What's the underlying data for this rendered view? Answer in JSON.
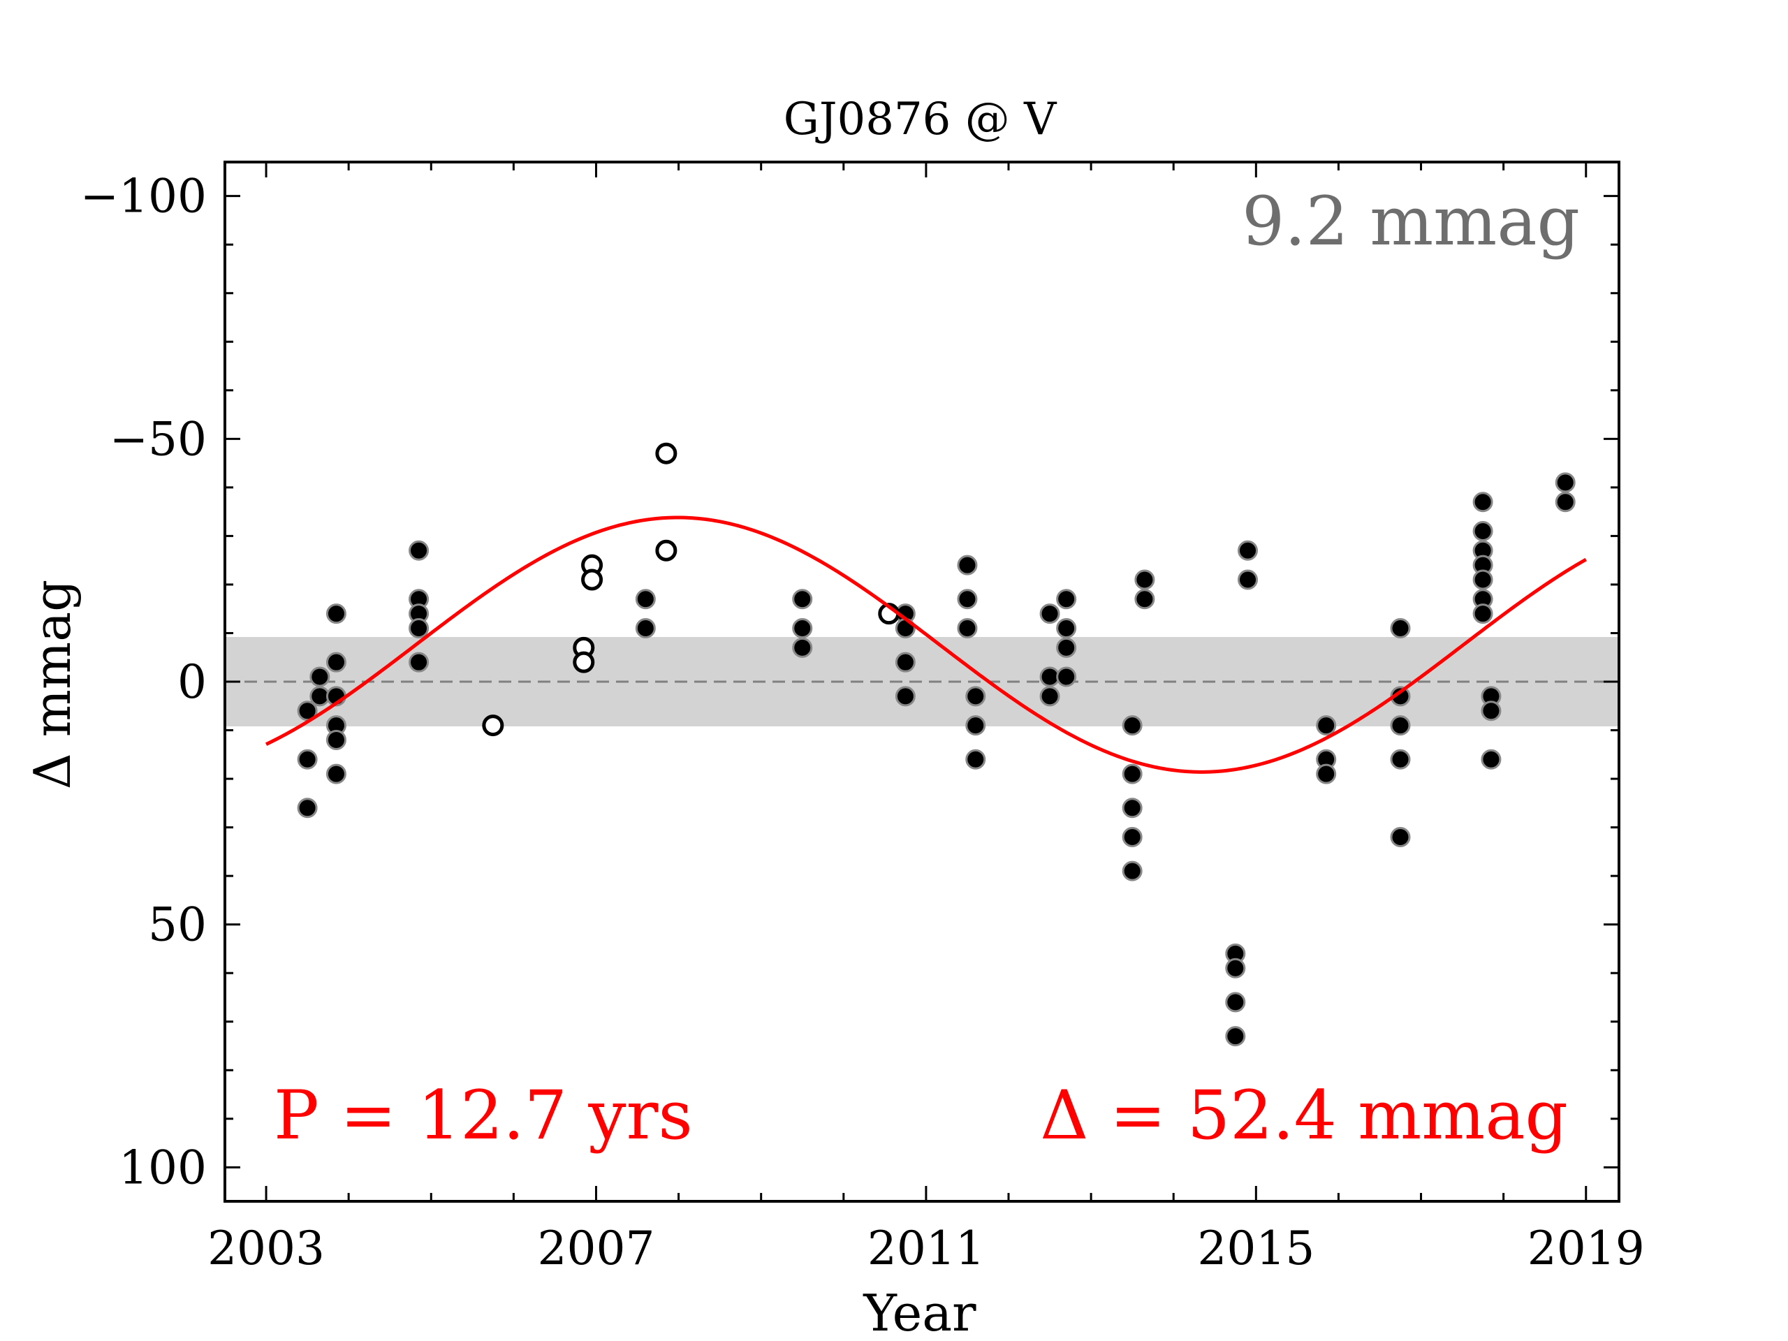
{
  "chart_data": {
    "type": "scatter",
    "title": "GJ0876 @ V",
    "xlabel": "Year",
    "ylabel": "Δ  mmag",
    "xlim": [
      2002.5,
      2019.4
    ],
    "ylim": [
      107,
      -107
    ],
    "y_inverted": true,
    "x_ticks": [
      2003,
      2007,
      2011,
      2015,
      2019
    ],
    "y_ticks": [
      -100,
      -50,
      0,
      50,
      100
    ],
    "band": {
      "from": -9.2,
      "to": 9.2,
      "color": "#d3d3d3"
    },
    "zero_line": {
      "y": 0,
      "style": "dashed",
      "color": "#808080"
    },
    "grid": false,
    "annotations": {
      "band_width": "9.2 mmag",
      "period": "P = 12.7 yrs",
      "amplitude": "Δ = 52.4 mmag"
    },
    "series": [
      {
        "marker": "filled",
        "color": "#000000",
        "points": [
          [
            2003.5,
            6
          ],
          [
            2003.5,
            16
          ],
          [
            2003.5,
            26
          ],
          [
            2003.65,
            -1
          ],
          [
            2003.65,
            3
          ],
          [
            2003.85,
            -14
          ],
          [
            2003.85,
            -4
          ],
          [
            2003.85,
            3
          ],
          [
            2003.85,
            9
          ],
          [
            2003.85,
            12
          ],
          [
            2003.85,
            19
          ],
          [
            2004.85,
            -27
          ],
          [
            2004.85,
            -17
          ],
          [
            2004.85,
            -14
          ],
          [
            2004.85,
            -11
          ],
          [
            2004.85,
            -4
          ],
          [
            2007.6,
            -17
          ],
          [
            2007.6,
            -11
          ],
          [
            2009.5,
            -17
          ],
          [
            2009.5,
            -11
          ],
          [
            2009.5,
            -7
          ],
          [
            2010.75,
            -14
          ],
          [
            2010.75,
            -11
          ],
          [
            2010.75,
            -4
          ],
          [
            2010.75,
            3
          ],
          [
            2011.5,
            -24
          ],
          [
            2011.5,
            -17
          ],
          [
            2011.5,
            -11
          ],
          [
            2011.6,
            3
          ],
          [
            2011.6,
            9
          ],
          [
            2011.6,
            16
          ],
          [
            2012.5,
            -14
          ],
          [
            2012.5,
            -1
          ],
          [
            2012.5,
            3
          ],
          [
            2012.7,
            -17
          ],
          [
            2012.7,
            -11
          ],
          [
            2012.7,
            -7
          ],
          [
            2012.7,
            -1
          ],
          [
            2013.5,
            9
          ],
          [
            2013.5,
            19
          ],
          [
            2013.5,
            26
          ],
          [
            2013.5,
            32
          ],
          [
            2013.5,
            39
          ],
          [
            2013.65,
            -21
          ],
          [
            2013.65,
            -17
          ],
          [
            2014.75,
            56
          ],
          [
            2014.75,
            59
          ],
          [
            2014.75,
            66
          ],
          [
            2014.75,
            73
          ],
          [
            2014.9,
            -27
          ],
          [
            2014.9,
            -21
          ],
          [
            2015.85,
            9
          ],
          [
            2015.85,
            16
          ],
          [
            2015.85,
            19
          ],
          [
            2016.75,
            -11
          ],
          [
            2016.75,
            3
          ],
          [
            2016.75,
            9
          ],
          [
            2016.75,
            16
          ],
          [
            2016.75,
            32
          ],
          [
            2017.75,
            -37
          ],
          [
            2017.75,
            -31
          ],
          [
            2017.75,
            -27
          ],
          [
            2017.75,
            -24
          ],
          [
            2017.75,
            -21
          ],
          [
            2017.75,
            -17
          ],
          [
            2017.75,
            -14
          ],
          [
            2017.85,
            3
          ],
          [
            2017.85,
            6
          ],
          [
            2017.85,
            16
          ],
          [
            2018.75,
            -41
          ],
          [
            2018.75,
            -37
          ]
        ]
      },
      {
        "marker": "open",
        "color": "#000000",
        "points": [
          [
            2005.75,
            9
          ],
          [
            2006.85,
            -7
          ],
          [
            2006.85,
            -4
          ],
          [
            2006.95,
            -24
          ],
          [
            2006.95,
            -21
          ],
          [
            2007.85,
            -47
          ],
          [
            2007.85,
            -27
          ],
          [
            2010.55,
            -14
          ]
        ]
      }
    ],
    "fit_curve": {
      "type": "sine",
      "color": "#ff0000",
      "period_years": 12.7,
      "amplitude_mmag": 26.2,
      "offset_mmag": -7.6,
      "peak_year": 2007.99,
      "x_range": [
        2003,
        2019
      ]
    }
  }
}
